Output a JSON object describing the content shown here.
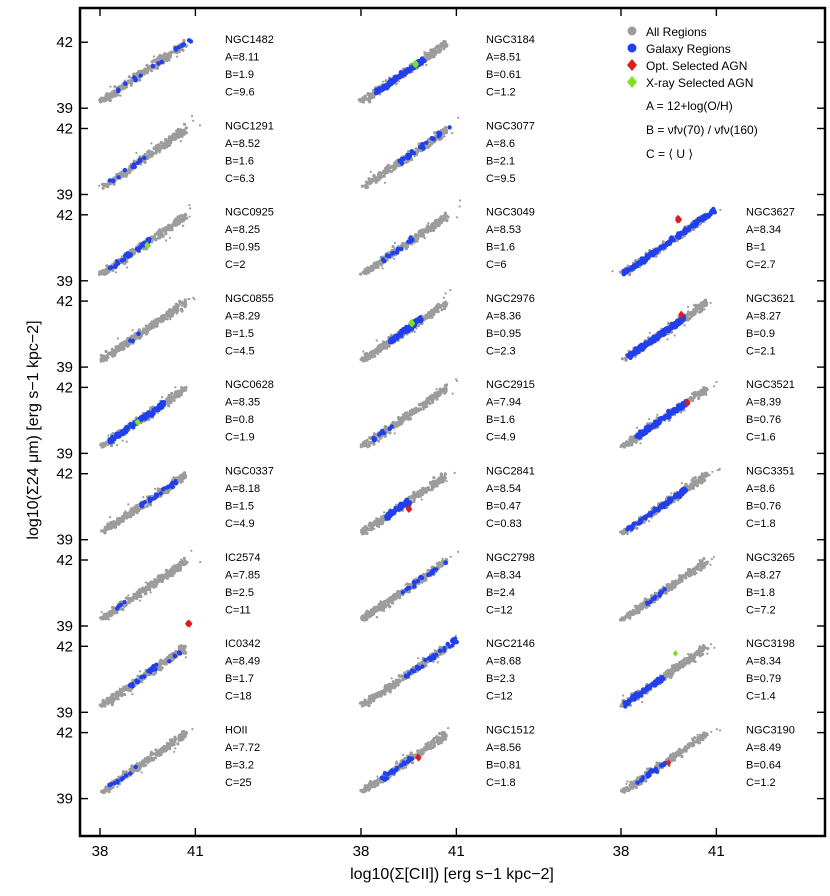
{
  "chart_data": {
    "type": "scatter",
    "xlabel": "log10(Σ[CII]) [erg s−1 kpc−2]",
    "ylabel": "log10(Σ24 μm) [erg s−1 kpc−2]",
    "x_ticks": [
      "38",
      "41"
    ],
    "y_ticks": [
      "39",
      "42"
    ],
    "xlim": [
      36.9,
      42.5
    ],
    "ylim": [
      38.3,
      43.1
    ],
    "colors": {
      "all": "#9c9c9c",
      "galaxy": "#2040ee",
      "opt_agn": "#dd1d1d",
      "xray_agn": "#7ee21e"
    },
    "legend": {
      "placement": "top-right",
      "entries": [
        {
          "label": "All Regions",
          "marker": "circle",
          "color": "#9c9c9c"
        },
        {
          "label": "Galaxy Regions",
          "marker": "circle",
          "color": "#2040ee"
        },
        {
          "label": "Opt. Selected AGN",
          "marker": "diamond",
          "color": "#dd1d1d"
        },
        {
          "label": "X-ray Selected AGN",
          "marker": "diamond",
          "color": "#7ee21e"
        }
      ],
      "definitions": [
        "A = 12+log(O/H)",
        "B = νfν(70) / νfν(160)",
        "C = ⟨ U ⟩"
      ]
    },
    "panels": [
      {
        "col": 0,
        "row": 0,
        "name": "NGC1482",
        "A": "A=8.11",
        "B": "B=1.9",
        "C": "C=9.6",
        "galaxy": {
          "x_range": [
            38.5,
            40.9
          ],
          "n": 18
        },
        "extra": []
      },
      {
        "col": 0,
        "row": 1,
        "name": "NGC1291",
        "A": "A=8.52",
        "B": "B=1.6",
        "C": "C=6.3",
        "galaxy": {
          "x_range": [
            38.3,
            39.4
          ],
          "n": 12
        },
        "extra": []
      },
      {
        "col": 0,
        "row": 2,
        "name": "NGC0925",
        "A": "A=8.25",
        "B": "B=0.95",
        "C": "C=2",
        "galaxy": {
          "x_range": [
            38.3,
            39.6
          ],
          "n": 28
        },
        "extra": [
          {
            "type": "xray",
            "x": 39.5,
            "y": 40.6,
            "n": 4
          }
        ]
      },
      {
        "col": 0,
        "row": 3,
        "name": "NGC0855",
        "A": "A=8.29",
        "B": "B=1.5",
        "C": "C=4.5",
        "galaxy": {
          "x_range": [
            38.9,
            39.3
          ],
          "n": 4
        },
        "extra": []
      },
      {
        "col": 0,
        "row": 4,
        "name": "NGC0628",
        "A": "A=8.35",
        "B": "B=0.8",
        "C": "C=1.9",
        "galaxy": {
          "x_range": [
            38.3,
            40.0
          ],
          "n": 110
        },
        "extra": [
          {
            "type": "xray",
            "x": 39.2,
            "y": 40.4,
            "n": 4
          }
        ]
      },
      {
        "col": 0,
        "row": 5,
        "name": "NGC0337",
        "A": "A=8.18",
        "B": "B=1.5",
        "C": "C=4.9",
        "galaxy": {
          "x_range": [
            39.0,
            40.4
          ],
          "n": 22
        },
        "extra": []
      },
      {
        "col": 0,
        "row": 6,
        "name": "IC2574",
        "A": "A=7.85",
        "B": "B=2.5",
        "C": "C=11",
        "galaxy": {
          "x_range": [
            37.9,
            38.8
          ],
          "n": 4
        },
        "extra": [
          {
            "type": "opt",
            "x": 40.8,
            "y": 39.1,
            "n": 5
          }
        ]
      },
      {
        "col": 0,
        "row": 7,
        "name": "IC0342",
        "A": "A=8.49",
        "B": "B=1.7",
        "C": "C=18",
        "galaxy": {
          "x_range": [
            38.9,
            40.6
          ],
          "n": 26
        },
        "extra": []
      },
      {
        "col": 0,
        "row": 8,
        "name": "HOII",
        "A": "A=7.72",
        "B": "B=3.2",
        "C": "C=25",
        "galaxy": {
          "x_range": [
            38.3,
            39.2
          ],
          "n": 10
        },
        "extra": []
      },
      {
        "col": 1,
        "row": 0,
        "name": "NGC3184",
        "A": "A=8.51",
        "B": "B=0.61",
        "C": "C=1.2",
        "galaxy": {
          "x_range": [
            38.5,
            40.0
          ],
          "n": 120
        },
        "extra": [
          {
            "type": "xray",
            "x": 39.7,
            "y": 41.0,
            "n": 8
          }
        ]
      },
      {
        "col": 1,
        "row": 1,
        "name": "NGC3077",
        "A": "A=8.6",
        "B": "B=2.1",
        "C": "C=9.5",
        "galaxy": {
          "x_range": [
            39.2,
            40.8
          ],
          "n": 30
        },
        "extra": []
      },
      {
        "col": 1,
        "row": 2,
        "name": "NGC3049",
        "A": "A=8.53",
        "B": "B=1.6",
        "C": "C=6",
        "galaxy": {
          "x_range": [
            38.6,
            40.0
          ],
          "n": 14
        },
        "extra": []
      },
      {
        "col": 1,
        "row": 3,
        "name": "NGC2976",
        "A": "A=8.36",
        "B": "B=0.95",
        "C": "C=2.3",
        "galaxy": {
          "x_range": [
            38.9,
            39.9
          ],
          "n": 90
        },
        "extra": [
          {
            "type": "xray",
            "x": 39.6,
            "y": 41.0,
            "n": 8
          }
        ]
      },
      {
        "col": 1,
        "row": 4,
        "name": "NGC2915",
        "A": "A=7.94",
        "B": "B=1.6",
        "C": "C=4.9",
        "galaxy": {
          "x_range": [
            38.3,
            39.2
          ],
          "n": 10
        },
        "extra": []
      },
      {
        "col": 1,
        "row": 5,
        "name": "NGC2841",
        "A": "A=8.54",
        "B": "B=0.47",
        "C": "C=0.83",
        "galaxy": {
          "x_range": [
            38.8,
            39.5
          ],
          "n": 60
        },
        "extra": [
          {
            "type": "opt",
            "x": 39.5,
            "y": 40.4,
            "n": 6
          }
        ]
      },
      {
        "col": 1,
        "row": 6,
        "name": "NGC2798",
        "A": "A=8.34",
        "B": "B=2.4",
        "C": "C=12",
        "galaxy": {
          "x_range": [
            39.3,
            40.7
          ],
          "n": 20
        },
        "extra": []
      },
      {
        "col": 1,
        "row": 7,
        "name": "NGC2146",
        "A": "A=8.68",
        "B": "B=2.3",
        "C": "C=12",
        "galaxy": {
          "x_range": [
            39.4,
            41.0
          ],
          "n": 32
        },
        "extra": []
      },
      {
        "col": 1,
        "row": 8,
        "name": "NGC1512",
        "A": "A=8.56",
        "B": "B=0.81",
        "C": "C=1.8",
        "galaxy": {
          "x_range": [
            38.6,
            39.6
          ],
          "n": 24
        },
        "extra": [
          {
            "type": "opt",
            "x": 39.8,
            "y": 40.9,
            "n": 4
          }
        ]
      },
      {
        "col": 2,
        "row": 2,
        "name": "NGC3627",
        "A": "A=8.34",
        "B": "B=1",
        "C": "C=2.7",
        "galaxy": {
          "x_range": [
            38.1,
            41.0
          ],
          "n": 160
        },
        "extra": [
          {
            "type": "opt",
            "x": 39.8,
            "y": 41.8,
            "n": 8
          }
        ]
      },
      {
        "col": 2,
        "row": 3,
        "name": "NGC3621",
        "A": "A=8.27",
        "B": "B=0.9",
        "C": "C=2.1",
        "galaxy": {
          "x_range": [
            38.2,
            40.0
          ],
          "n": 170
        },
        "extra": [
          {
            "type": "opt",
            "x": 39.9,
            "y": 41.4,
            "n": 6
          }
        ]
      },
      {
        "col": 2,
        "row": 4,
        "name": "NGC3521",
        "A": "A=8.39",
        "B": "B=0.76",
        "C": "C=1.6",
        "galaxy": {
          "x_range": [
            38.5,
            40.1
          ],
          "n": 130
        },
        "extra": [
          {
            "type": "opt",
            "x": 40.1,
            "y": 41.3,
            "n": 5
          }
        ]
      },
      {
        "col": 2,
        "row": 5,
        "name": "NGC3351",
        "A": "A=8.6",
        "B": "B=0.76",
        "C": "C=1.8",
        "galaxy": {
          "x_range": [
            38.2,
            40.1
          ],
          "n": 80
        },
        "extra": []
      },
      {
        "col": 2,
        "row": 6,
        "name": "NGC3265",
        "A": "A=8.27",
        "B": "B=1.8",
        "C": "C=7.2",
        "galaxy": {
          "x_range": [
            38.7,
            39.5
          ],
          "n": 12
        },
        "extra": []
      },
      {
        "col": 2,
        "row": 7,
        "name": "NGC3198",
        "A": "A=8.34",
        "B": "B=0.79",
        "C": "C=1.4",
        "galaxy": {
          "x_range": [
            38.1,
            39.3
          ],
          "n": 80
        },
        "extra": [
          {
            "type": "xray",
            "x": 39.7,
            "y": 41.7,
            "n": 1
          }
        ]
      },
      {
        "col": 2,
        "row": 8,
        "name": "NGC3190",
        "A": "A=8.49",
        "B": "B=0.64",
        "C": "C=1.2",
        "galaxy": {
          "x_range": [
            38.5,
            39.4
          ],
          "n": 20
        },
        "extra": [
          {
            "type": "opt",
            "x": 39.5,
            "y": 40.6,
            "n": 1
          }
        ]
      }
    ]
  }
}
